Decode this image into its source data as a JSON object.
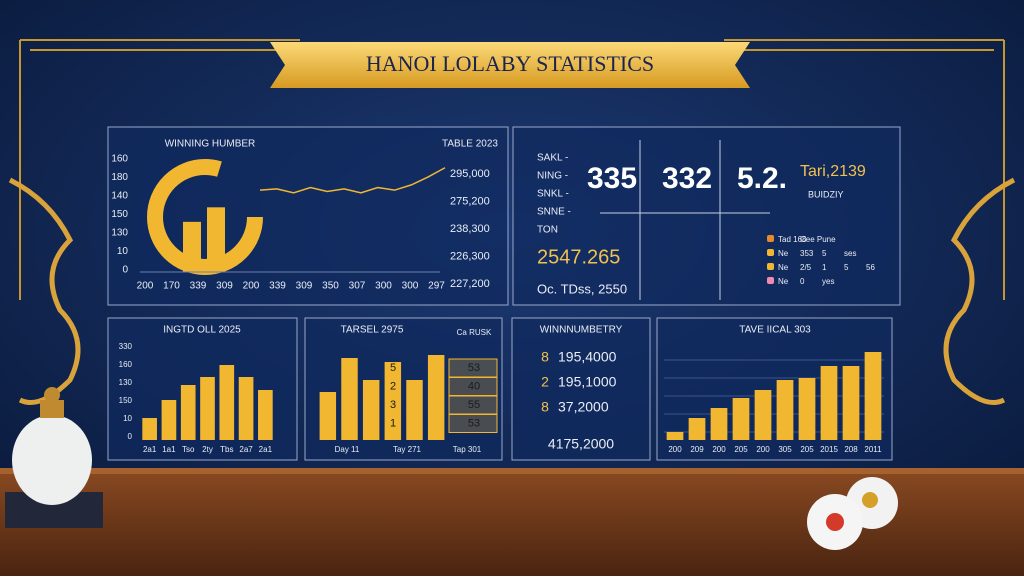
{
  "banner": {
    "title": "HANOI LOLABY STATISTICS"
  },
  "main_chart": {
    "title": "WINNING HUMBER",
    "subtitle": "TABLE 2023",
    "y_labels": [
      "0",
      "10",
      "130",
      "150",
      "140",
      "180",
      "160"
    ],
    "right_labels": [
      "295,000",
      "275,200",
      "238,300",
      "226,300",
      "227,200"
    ],
    "x_labels": [
      "200",
      "170",
      "339",
      "309",
      "200",
      "339",
      "309",
      "350",
      "307",
      "300",
      "300",
      "297"
    ],
    "bars": [
      38,
      49
    ],
    "line": [
      62,
      63,
      60,
      64,
      61,
      63,
      60,
      64,
      62,
      66,
      72,
      79
    ],
    "color": "#f2b731"
  },
  "stats": {
    "labels": [
      "SAKL -",
      "NING -",
      "SNKL -",
      "SNNE -",
      "TON"
    ],
    "big": [
      "335",
      "332",
      "5.2."
    ],
    "side": "Tari,2139",
    "side_sub": "BUIDZIY",
    "total": "2547.265",
    "note": "Oc. TDss, 2550",
    "legend": [
      {
        "color": "#e8892e",
        "cells": [
          "Tad 168",
          "Cee Pune"
        ]
      },
      {
        "color": "#f2b731",
        "cells": [
          "Ne",
          "353",
          "5",
          "ses"
        ]
      },
      {
        "color": "#f2b731",
        "cells": [
          "Ne",
          "2/5",
          "1",
          "5",
          "56"
        ]
      },
      {
        "color": "#f08ab0",
        "cells": [
          "Ne",
          "0",
          "yes"
        ]
      }
    ]
  },
  "mini_charts": [
    {
      "title": "INGTD OLL 2025",
      "y_labels": [
        "0",
        "10",
        "150",
        "130",
        "160",
        "330"
      ],
      "x_labels": [
        "2a1",
        "1a1",
        "Tso",
        "2ty",
        "Tbs",
        "2a7",
        "2a1"
      ],
      "values": [
        22,
        40,
        55,
        63,
        75,
        63,
        50
      ],
      "color": "#f2b731"
    },
    {
      "title": "TARSEL 2975",
      "y_labels": [],
      "x_labels": [
        "Day 11",
        "Tay 271",
        "Tap 301"
      ],
      "values": [
        48,
        82,
        60,
        78,
        60,
        85
      ],
      "color": "#f2b731"
    },
    {
      "title": "TAVE IICAL 303",
      "y_labels": [],
      "x_labels": [
        "200",
        "209",
        "200",
        "205",
        "200",
        "305",
        "205",
        "2015",
        "208",
        "2011"
      ],
      "values": [
        8,
        22,
        32,
        42,
        50,
        60,
        62,
        74,
        74,
        88
      ],
      "color": "#f2b731"
    }
  ],
  "overlay_table": {
    "header": "Ca RUSK",
    "rows": [
      [
        "5",
        "53"
      ],
      [
        "2",
        "40"
      ],
      [
        "3",
        "55"
      ],
      [
        "1",
        "53"
      ]
    ]
  },
  "winning": {
    "title": "WINNNUMBETRY",
    "rows": [
      [
        "8",
        "195,4000"
      ],
      [
        "2",
        "195,1000"
      ],
      [
        "8",
        "37,2000"
      ]
    ],
    "total": "4175,2000"
  }
}
